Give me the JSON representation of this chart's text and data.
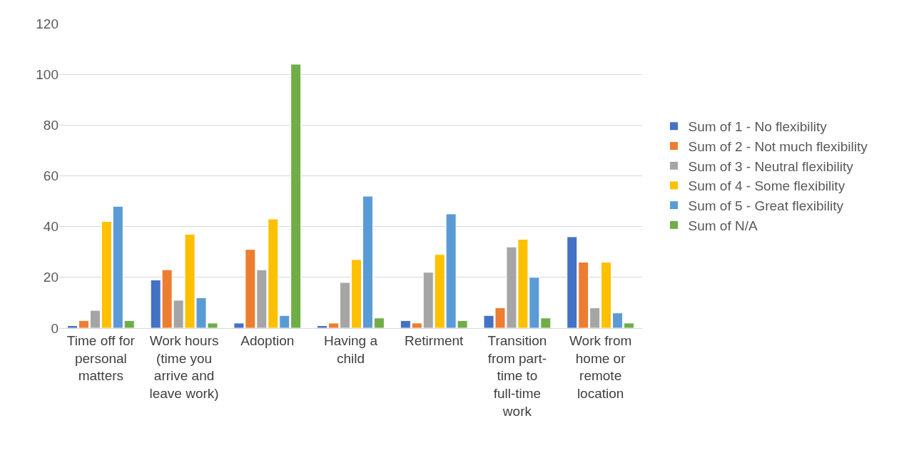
{
  "chart_data": {
    "type": "bar",
    "categories": [
      "Time off for personal matters",
      "Work hours (time you arrive and leave work)",
      "Adoption",
      "Having a child",
      "Retirment",
      "Transition from part-time to full-time work",
      "Work from home or remote location"
    ],
    "series": [
      {
        "name": "Sum of 1 - No flexibility",
        "color": "#4472c4",
        "values": [
          1,
          19,
          2,
          1,
          3,
          5,
          36
        ]
      },
      {
        "name": "Sum of 2 - Not much flexibility",
        "color": "#ed7d31",
        "values": [
          3,
          23,
          31,
          2,
          2,
          8,
          26
        ]
      },
      {
        "name": "Sum of 3 - Neutral flexibility",
        "color": "#a5a5a5",
        "values": [
          7,
          11,
          23,
          18,
          22,
          32,
          8
        ]
      },
      {
        "name": "Sum of 4 - Some flexibility",
        "color": "#ffc000",
        "values": [
          42,
          37,
          43,
          27,
          29,
          35,
          26
        ]
      },
      {
        "name": "Sum of 5 - Great flexibility",
        "color": "#5b9bd5",
        "values": [
          48,
          12,
          5,
          52,
          45,
          20,
          6
        ]
      },
      {
        "name": "Sum of N/A",
        "color": "#70ad47",
        "values": [
          3,
          2,
          104,
          4,
          3,
          4,
          2
        ]
      }
    ],
    "ylim": [
      0,
      120
    ],
    "yticks": [
      0,
      20,
      40,
      60,
      80,
      100,
      120
    ],
    "grid": "y",
    "legend": "right"
  }
}
